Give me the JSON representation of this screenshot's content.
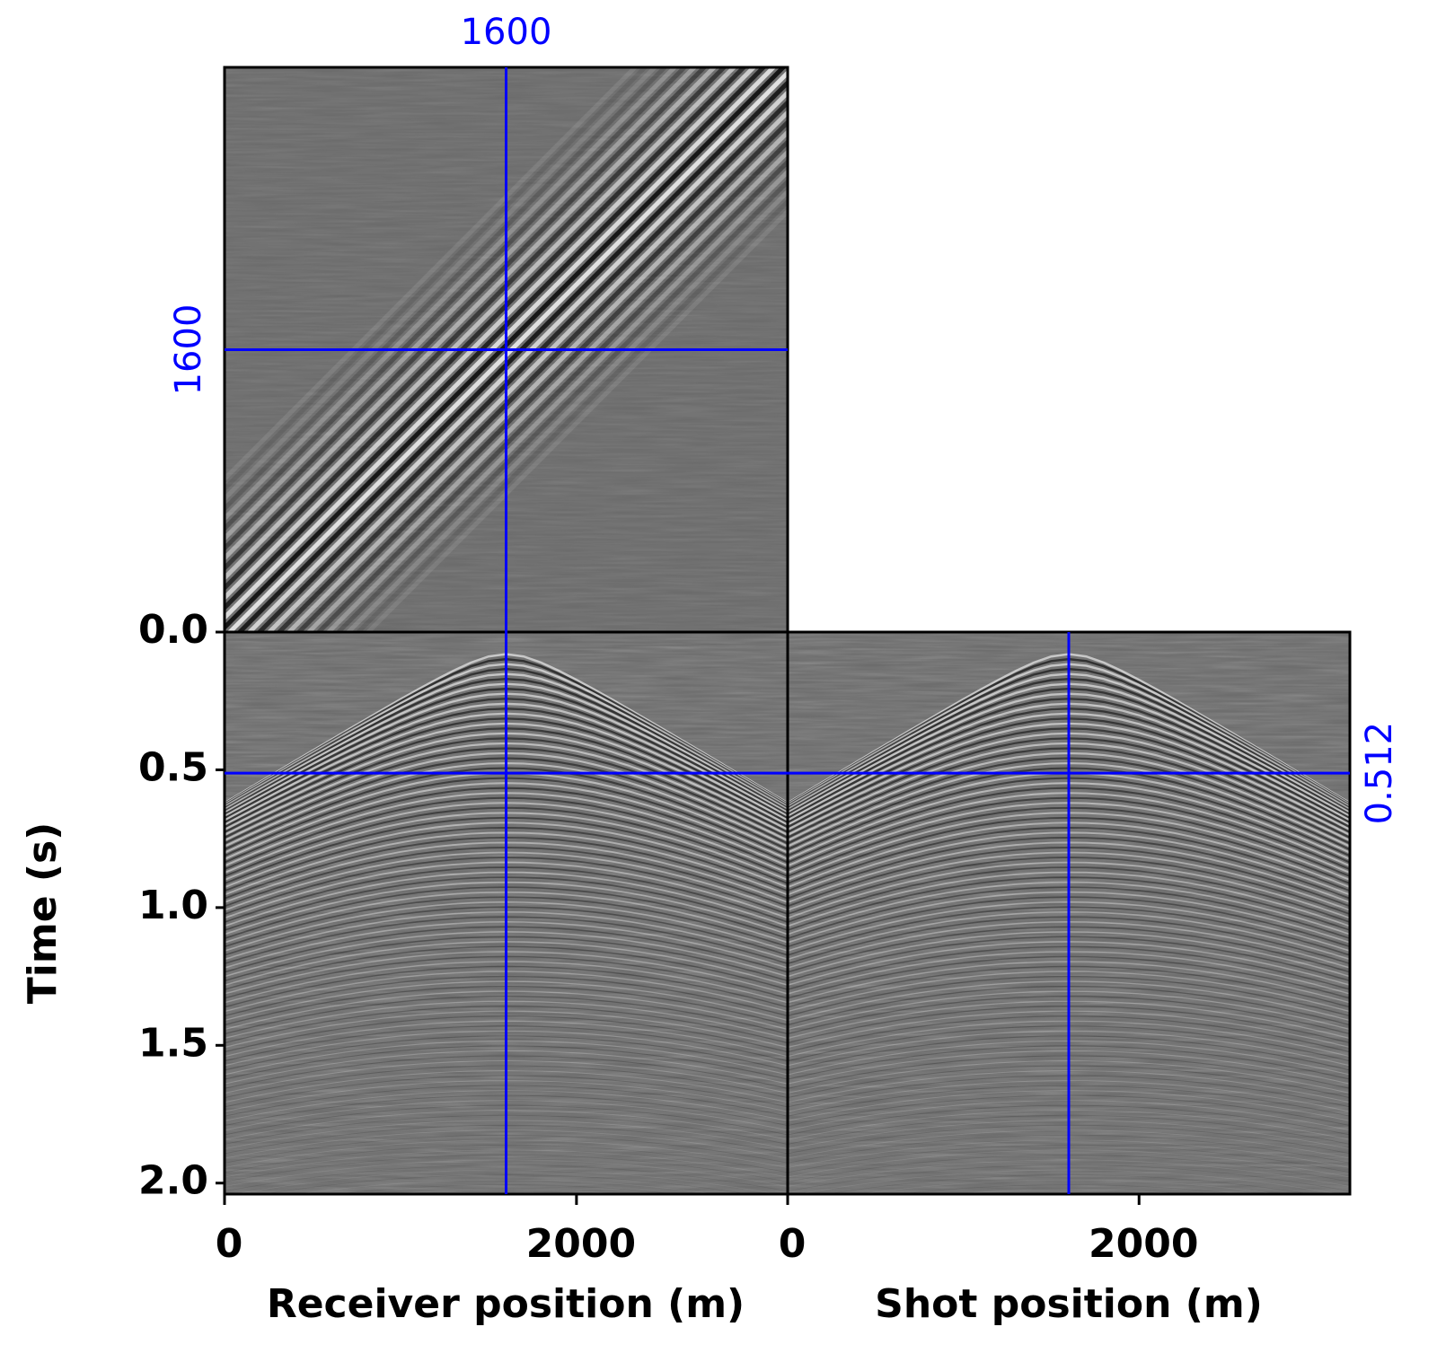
{
  "chart_data": {
    "type": "seismic-cube",
    "ylabel": "Time (s)",
    "ylim": [
      0,
      2.04
    ],
    "yticks": [
      {
        "value": 0,
        "label": "0.0"
      },
      {
        "value": 0.5,
        "label": "0.5"
      },
      {
        "value": 1,
        "label": "1.0"
      },
      {
        "value": 1.5,
        "label": "1.5"
      },
      {
        "value": 2,
        "label": "2.0"
      }
    ],
    "receiver_axis": {
      "label": "Receiver position (m)",
      "xlim": [
        0,
        3200
      ],
      "xticks": [
        0,
        2000
      ]
    },
    "shot_axis": {
      "label": "Shot position (m)",
      "xlim": [
        0,
        3200
      ],
      "xticks": [
        0,
        2000
      ]
    },
    "crosshair": {
      "receiver": 1600,
      "shot": 1600,
      "time": 0.512,
      "color": "#0000ff"
    }
  }
}
